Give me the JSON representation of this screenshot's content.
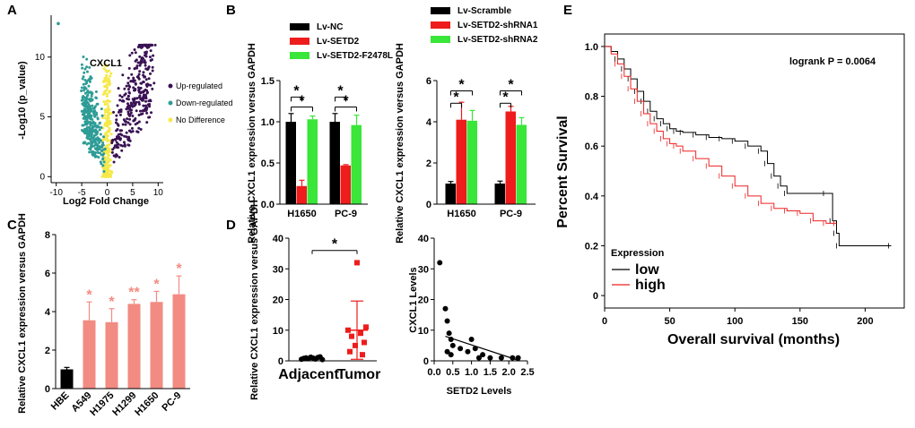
{
  "colors": {
    "black": "#000000",
    "red": "#ee1c1c",
    "green": "#39e639",
    "salmon": "#f28b82",
    "teal": "#2e9c96",
    "purple": "#3a1254",
    "yellow": "#f5e94a",
    "darkred": "#cc0000",
    "km_red": "#ee2222"
  },
  "chart_data": [
    {
      "panel": "A",
      "type": "scatter",
      "xlabel": "Log2 Fold Change",
      "ylabel": "-Log10 (p_value)",
      "xticks": [
        -10,
        -5,
        0,
        5,
        10
      ],
      "yticks": [
        0,
        5,
        10
      ],
      "xlim": [
        -11,
        11
      ],
      "ylim": [
        -0.5,
        13.5
      ],
      "label_gene": "CXCL1",
      "legend": [
        "Up-regulated",
        "Down-regulated",
        "No Difference"
      ],
      "groups": [
        {
          "name": "No Difference",
          "color": "#f5e94a",
          "x_range": [
            -1,
            1
          ],
          "y_max": 9.5
        },
        {
          "name": "Down-regulated",
          "color": "#2e9c96",
          "x_range": [
            -5,
            -0.3
          ],
          "y_max": 11.5
        },
        {
          "name": "Up-regulated",
          "color": "#3a1254",
          "x_range": [
            0.3,
            9
          ],
          "y_max": 11
        }
      ],
      "outliers": [
        {
          "x": -9.6,
          "y": 12.8
        }
      ]
    },
    {
      "panel": "B",
      "type": "bar",
      "ylabel": "Relative CXCL1 expression versus GAPDH",
      "categories": [
        "H1650",
        "PC-9"
      ],
      "ylim": [
        0,
        1.5
      ],
      "yticks": [
        "0.0",
        "0.5",
        "1.0",
        "1.5"
      ],
      "series": [
        {
          "name": "Lv-NC",
          "color": "#000000",
          "values": [
            1.0,
            1.0
          ],
          "errors": [
            0.1,
            0.1
          ]
        },
        {
          "name": "Lv-SETD2",
          "color": "#ee1c1c",
          "values": [
            0.22,
            0.47
          ],
          "errors": [
            0.07,
            0.01
          ]
        },
        {
          "name": "Lv-SETD2-F2478L",
          "color": "#39e639",
          "values": [
            1.03,
            0.96
          ],
          "errors": [
            0.04,
            0.12
          ]
        }
      ],
      "significance": [
        "*",
        "*",
        "*",
        "*"
      ]
    },
    {
      "panel": "B2",
      "type": "bar",
      "ylabel": "Relative CXCL1 expression versus GAPDH",
      "categories": [
        "H1650",
        "PC-9"
      ],
      "ylim": [
        0,
        6
      ],
      "yticks": [
        "0",
        "2",
        "4",
        "6"
      ],
      "series": [
        {
          "name": "Lv-Scramble",
          "color": "#000000",
          "values": [
            1.0,
            1.0
          ],
          "errors": [
            0.1,
            0.12
          ]
        },
        {
          "name": "Lv-SETD2-shRNA1",
          "color": "#ee1c1c",
          "values": [
            4.1,
            4.5
          ],
          "errors": [
            0.85,
            0.25
          ]
        },
        {
          "name": "Lv-SETD2-shRNA2",
          "color": "#39e639",
          "values": [
            4.05,
            3.85
          ],
          "errors": [
            0.5,
            0.35
          ]
        }
      ],
      "significance": [
        "*",
        "*",
        "*",
        "*"
      ]
    },
    {
      "panel": "C",
      "type": "bar",
      "ylabel": "Relative CXCL1 expression versus GAPDH",
      "categories": [
        "HBE",
        "A549",
        "H1975",
        "H1299",
        "H1650",
        "PC-9"
      ],
      "values": [
        1.0,
        3.55,
        3.45,
        4.4,
        4.5,
        4.9
      ],
      "errors": [
        0.1,
        0.95,
        0.7,
        0.22,
        0.55,
        0.95
      ],
      "colors": [
        "#000000",
        "#f28b82",
        "#f28b82",
        "#f28b82",
        "#f28b82",
        "#f28b82"
      ],
      "marks": [
        "",
        "*",
        "*",
        "**",
        "*",
        "*"
      ],
      "ylim": [
        0,
        8
      ],
      "yticks": [
        "0",
        "2",
        "4",
        "6",
        "8"
      ]
    },
    {
      "panel": "D",
      "type": "scatter",
      "ylabel": "Relative CXCL1 expression versus GAPDH",
      "categories": [
        "Adjacent",
        "Tumor"
      ],
      "ylim": [
        0,
        40
      ],
      "yticks": [
        "0",
        "10",
        "20",
        "30",
        "40"
      ],
      "adjacent": [
        0.5,
        0.8,
        1.0,
        0.7,
        1.2,
        0.9,
        0.6,
        1.1,
        1.3,
        0.4
      ],
      "tumor": [
        32,
        11,
        10,
        9,
        8,
        6,
        5,
        3,
        2
      ],
      "tumor_mean": 10,
      "tumor_sd": 9.5,
      "adj_mean": 1,
      "adj_sd": 0.5,
      "significance": "*"
    },
    {
      "panel": "D2",
      "type": "scatter",
      "xlabel": "SETD2 Levels",
      "ylabel": "CXCL1 Levels",
      "xlim": [
        0,
        2.5
      ],
      "ylim": [
        0,
        40
      ],
      "xticks": [
        "0.0",
        "0.5",
        "1.0",
        "1.5",
        "2.0",
        "2.5"
      ],
      "yticks": [
        "0",
        "10",
        "20",
        "30",
        "40"
      ],
      "x": [
        0.15,
        0.3,
        0.35,
        0.4,
        0.45,
        0.5,
        0.35,
        0.45,
        0.7,
        0.9,
        1.0,
        1.1,
        1.2,
        1.3,
        1.5,
        1.8,
        2.1,
        2.25
      ],
      "y": [
        32,
        17,
        13,
        9,
        7,
        5,
        3,
        2,
        4,
        3,
        7,
        4,
        1,
        2,
        1,
        1,
        1,
        1
      ],
      "fit": {
        "x": [
          0.3,
          2.3
        ],
        "y": [
          8,
          0
        ]
      }
    },
    {
      "panel": "E",
      "type": "line",
      "xlabel": "Overall survival (months)",
      "ylabel": "Percent Survival",
      "xlim": [
        0,
        230
      ],
      "ylim": [
        -0.05,
        1.05
      ],
      "xticks": [
        "0",
        "50",
        "100",
        "150",
        "200"
      ],
      "yticks": [
        "0",
        "0.2",
        "0.4",
        "0.6",
        "0.8",
        "1.0"
      ],
      "annotation": "logrank P = 0.0064",
      "legend_title": "Expression",
      "series": [
        {
          "name": "low",
          "color": "#000000",
          "x": [
            0,
            5,
            10,
            15,
            20,
            25,
            30,
            35,
            40,
            45,
            50,
            55,
            60,
            70,
            80,
            90,
            100,
            110,
            120,
            125,
            130,
            135,
            140,
            170,
            175,
            178,
            180,
            220
          ],
          "y": [
            1.0,
            0.98,
            0.95,
            0.91,
            0.87,
            0.82,
            0.78,
            0.74,
            0.71,
            0.69,
            0.67,
            0.66,
            0.655,
            0.645,
            0.635,
            0.63,
            0.62,
            0.6,
            0.58,
            0.53,
            0.48,
            0.44,
            0.41,
            0.41,
            0.3,
            0.25,
            0.2,
            0.2
          ]
        },
        {
          "name": "high",
          "color": "#ee2222",
          "x": [
            0,
            5,
            10,
            15,
            20,
            25,
            30,
            35,
            40,
            45,
            50,
            55,
            60,
            70,
            80,
            90,
            100,
            110,
            120,
            130,
            140,
            150,
            160,
            170,
            178
          ],
          "y": [
            1.0,
            0.97,
            0.93,
            0.88,
            0.83,
            0.78,
            0.73,
            0.69,
            0.66,
            0.63,
            0.61,
            0.6,
            0.58,
            0.55,
            0.52,
            0.48,
            0.44,
            0.4,
            0.37,
            0.35,
            0.34,
            0.33,
            0.3,
            0.29,
            0.29
          ]
        }
      ]
    }
  ]
}
